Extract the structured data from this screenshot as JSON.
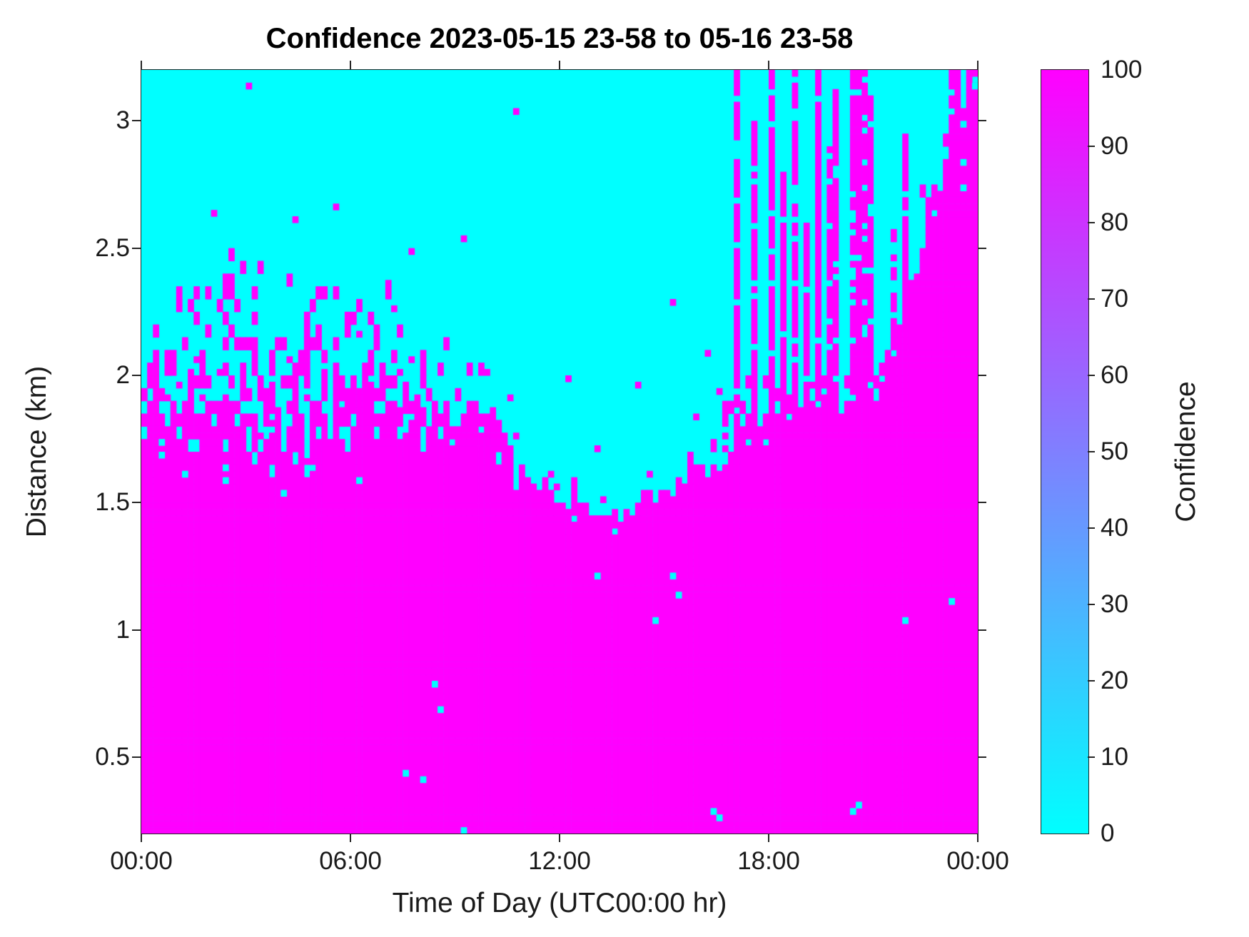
{
  "figure": {
    "title": "Confidence 2023-05-15 23-58 to 05-16 23-58",
    "background_color": "#FFFFFF"
  },
  "chart_data": {
    "type": "heatmap",
    "title": "Confidence 2023-05-15 23-58 to 05-16 23-58",
    "xlabel": "Time of Day (UTC00:00 hr)",
    "ylabel": "Distance (km)",
    "x_tick_labels": [
      "00:00",
      "06:00",
      "12:00",
      "18:00",
      "00:00"
    ],
    "x_tick_hours": [
      0,
      6,
      12,
      18,
      24
    ],
    "y_tick_values": [
      0.5,
      1,
      1.5,
      2,
      2.5,
      3
    ],
    "xlim_hours": [
      0,
      24
    ],
    "ylim_km": [
      0.2,
      3.2
    ],
    "values": {
      "low": 0,
      "high": 100,
      "unit": "confidence %"
    },
    "palette": {
      "colormap": "cool",
      "low_color": "#00FFFF",
      "high_color": "#FF00FF"
    },
    "colorbar": {
      "label": "Confidence",
      "min": 0,
      "max": 100,
      "ticks": [
        0,
        10,
        20,
        30,
        40,
        50,
        60,
        70,
        80,
        90,
        100
      ],
      "position": "right"
    },
    "grid_resolution": {
      "time_bins": 144,
      "height_bins": 120
    },
    "pattern_description": "Binary field: high confidence (100, magenta) below a time-varying boundary, low confidence (0, cyan) above. Speckled mixing zone 00:00-09:00 between ~1.5 and ~2.6 km; boundary sinks to ~1.35 km near 12:00-14:00; tall magenta vertical streaks reach plot top from ~17:00 on; solid boundary climbs to ~3.1 km by 24:00.",
    "confidence_boundary": {
      "time_h": [
        0,
        0.5,
        1,
        1.5,
        2,
        2.5,
        3,
        3.5,
        4,
        4.5,
        5,
        5.5,
        6,
        6.5,
        7,
        7.5,
        8,
        8.5,
        9,
        9.5,
        10,
        10.5,
        11,
        11.5,
        12,
        12.5,
        13,
        13.5,
        14,
        14.5,
        15,
        15.5,
        16,
        16.5,
        17,
        17.5,
        18,
        18.5,
        19,
        19.5,
        20,
        20.5,
        21,
        21.5,
        22,
        22.5,
        23,
        23.5,
        24
      ],
      "solid_magenta_top_km": [
        1.62,
        1.68,
        1.72,
        1.58,
        1.55,
        1.6,
        1.52,
        1.55,
        1.5,
        1.48,
        1.55,
        1.5,
        1.55,
        1.62,
        1.68,
        1.75,
        1.65,
        1.6,
        1.68,
        1.72,
        1.65,
        1.58,
        1.5,
        1.45,
        1.42,
        1.4,
        1.38,
        1.36,
        1.4,
        1.45,
        1.5,
        1.52,
        1.55,
        1.58,
        1.62,
        1.66,
        1.7,
        1.72,
        1.74,
        1.76,
        1.78,
        1.8,
        1.8,
        1.95,
        2.2,
        2.5,
        2.7,
        2.95,
        3.1
      ],
      "speckle_top_km": [
        2.35,
        2.3,
        2.32,
        2.5,
        2.45,
        2.6,
        2.52,
        2.6,
        2.55,
        2.62,
        2.65,
        2.6,
        2.52,
        2.45,
        2.38,
        2.32,
        2.28,
        2.22,
        2.15,
        2.1,
        2.02,
        1.95,
        1.85,
        1.75,
        1.68,
        1.62,
        1.58,
        1.55,
        1.58,
        1.62,
        1.68,
        1.72,
        1.78,
        1.85,
        1.95,
        2.0,
        2.05,
        2.05,
        2.1,
        2.1,
        2.1,
        2.15,
        2.15,
        2.25,
        2.5,
        2.8,
        3.0,
        3.18,
        3.18
      ]
    },
    "evening_streaks": [
      [
        17.1,
        0.1,
        3.2
      ],
      [
        17.35,
        0.06,
        2.55
      ],
      [
        17.6,
        0.08,
        3.0
      ],
      [
        18.1,
        0.1,
        3.2
      ],
      [
        18.45,
        0.08,
        2.8
      ],
      [
        18.75,
        0.12,
        3.2
      ],
      [
        19.1,
        0.06,
        2.6
      ],
      [
        19.4,
        0.12,
        3.2
      ],
      [
        19.75,
        0.06,
        2.9
      ],
      [
        19.95,
        0.1,
        3.15
      ],
      [
        20.5,
        0.14,
        3.2
      ],
      [
        20.75,
        0.12,
        3.2
      ],
      [
        20.95,
        0.08,
        3.1
      ],
      [
        21.6,
        0.06,
        2.6
      ],
      [
        21.9,
        0.07,
        2.95
      ],
      [
        22.3,
        0.05,
        2.8
      ],
      [
        23.3,
        0.15,
        3.2
      ],
      [
        23.7,
        0.1,
        3.2
      ],
      [
        23.95,
        0.08,
        3.2
      ]
    ],
    "high_magenta_specks": [
      [
        2.0,
        2.64
      ],
      [
        3.05,
        3.13
      ],
      [
        4.4,
        2.62
      ],
      [
        5.6,
        2.67
      ],
      [
        7.8,
        2.5
      ],
      [
        9.3,
        2.55
      ],
      [
        10.7,
        3.05
      ],
      [
        12.3,
        2.0
      ],
      [
        13.1,
        1.72
      ],
      [
        14.2,
        1.96
      ],
      [
        14.6,
        1.62
      ],
      [
        15.3,
        2.3
      ],
      [
        15.9,
        1.85
      ],
      [
        16.2,
        2.1
      ],
      [
        16.6,
        1.93
      ]
    ],
    "low_cyan_specks": [
      [
        0.55,
        1.74
      ],
      [
        0.65,
        1.7
      ],
      [
        1.3,
        1.62
      ],
      [
        2.35,
        1.6
      ],
      [
        2.45,
        1.64
      ],
      [
        4.1,
        1.55
      ],
      [
        6.3,
        1.6
      ],
      [
        7.6,
        0.43
      ],
      [
        8.0,
        0.42
      ],
      [
        8.4,
        0.8
      ],
      [
        8.5,
        0.7
      ],
      [
        9.3,
        0.22
      ],
      [
        13.05,
        1.21
      ],
      [
        14.8,
        1.04
      ],
      [
        15.2,
        1.22
      ],
      [
        15.4,
        1.15
      ],
      [
        16.4,
        0.3
      ],
      [
        16.55,
        0.27
      ],
      [
        20.45,
        0.29
      ],
      [
        20.6,
        0.31
      ],
      [
        21.9,
        1.05
      ],
      [
        23.3,
        1.12
      ],
      [
        23.5,
        3.0
      ],
      [
        23.55,
        2.75
      ],
      [
        23.6,
        2.85
      ],
      [
        23.9,
        3.15
      ]
    ],
    "render_seed": 7
  }
}
